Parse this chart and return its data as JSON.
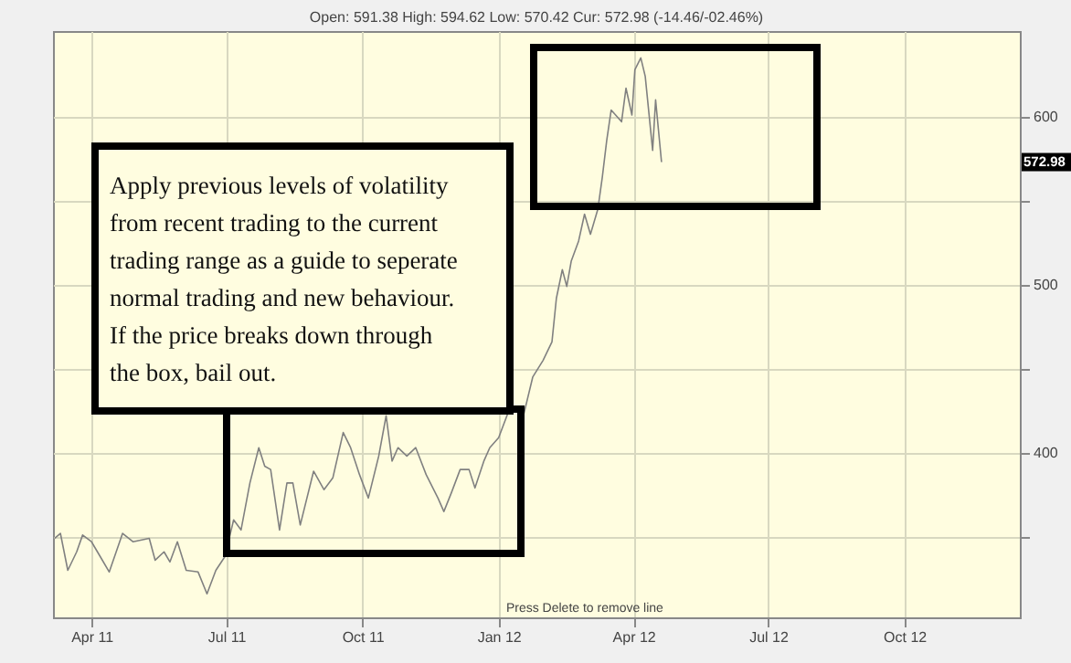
{
  "chart_data": {
    "type": "line",
    "title": "Open: 591.38 High: 594.62 Low: 570.42 Cur: 572.98 (-14.46/-02.46%)",
    "x": [
      "2011-03-07",
      "2011-03-11",
      "2011-03-16",
      "2011-03-22",
      "2011-03-26",
      "2011-04-01",
      "2011-04-07",
      "2011-04-13",
      "2011-04-22",
      "2011-04-29",
      "2011-05-10",
      "2011-05-14",
      "2011-05-20",
      "2011-05-24",
      "2011-05-29",
      "2011-06-04",
      "2011-06-12",
      "2011-06-18",
      "2011-06-24",
      "2011-06-30",
      "2011-07-06",
      "2011-07-11",
      "2011-07-17",
      "2011-07-23",
      "2011-07-27",
      "2011-07-31",
      "2011-08-06",
      "2011-08-11",
      "2011-08-15",
      "2011-08-20",
      "2011-08-29",
      "2011-09-05",
      "2011-09-11",
      "2011-09-18",
      "2011-09-23",
      "2011-09-29",
      "2011-10-05",
      "2011-10-12",
      "2011-10-17",
      "2011-10-21",
      "2011-10-25",
      "2011-10-31",
      "2011-11-06",
      "2011-11-13",
      "2011-11-21",
      "2011-11-25",
      "2011-11-30",
      "2011-12-06",
      "2011-12-12",
      "2011-12-16",
      "2011-12-22",
      "2011-12-26",
      "2012-01-01",
      "2012-01-07",
      "2012-01-13",
      "2012-01-18",
      "2012-01-24",
      "2012-01-31",
      "2012-02-06",
      "2012-02-09",
      "2012-02-13",
      "2012-02-16",
      "2012-02-19",
      "2012-02-24",
      "2012-02-28",
      "2012-03-03",
      "2012-03-08",
      "2012-03-11",
      "2012-03-14",
      "2012-03-17",
      "2012-03-24",
      "2012-03-27",
      "2012-03-31",
      "2012-04-02",
      "2012-04-06",
      "2012-04-09",
      "2012-04-14",
      "2012-04-16",
      "2012-04-20"
    ],
    "series": [
      {
        "color": "#808080",
        "values": [
          349,
          352,
          330,
          341,
          351,
          347,
          338,
          329,
          352,
          347,
          349,
          336,
          341,
          335,
          347,
          330,
          329,
          316,
          330,
          338,
          360,
          354,
          382,
          403,
          392,
          390,
          354,
          382,
          382,
          357,
          389,
          378,
          385,
          412,
          403,
          387,
          373,
          398,
          422,
          395,
          403,
          398,
          403,
          387,
          373,
          365,
          376,
          390,
          390,
          379,
          395,
          403,
          409,
          423,
          425,
          423,
          445,
          455,
          466,
          492,
          509,
          499,
          514,
          526,
          542,
          530,
          545,
          564,
          586,
          604,
          597,
          617,
          601,
          628,
          635,
          624,
          580,
          610,
          572.98
        ]
      }
    ],
    "xlim": [
      "2011-03-06",
      "2012-12-18"
    ],
    "xticks": [
      {
        "value": "2011-04-01",
        "label": "Apr 11"
      },
      {
        "value": "2011-07-01",
        "label": "Jul 11"
      },
      {
        "value": "2011-10-01",
        "label": "Oct 11"
      },
      {
        "value": "2012-01-01",
        "label": "Jan 12"
      },
      {
        "value": "2012-04-01",
        "label": "Apr 12"
      },
      {
        "value": "2012-07-01",
        "label": "Jul 12"
      },
      {
        "value": "2012-10-01",
        "label": "Oct 12"
      }
    ],
    "ylim": [
      302,
      651
    ],
    "yticks": [
      {
        "value": 350,
        "label": null
      },
      400,
      {
        "value": 450,
        "label": null
      },
      500,
      {
        "value": 550,
        "label": null
      },
      600
    ],
    "grid": true,
    "annotations": [
      "Apply previous levels of volatility\nfrom recent trading to the current\ntrading range as a guide to seperate\nnormal trading and new behaviour.\nIf the price breaks down through\nthe box, bail out.",
      "Press Delete to remove line",
      {
        "text": "572.98",
        "y": 572.98
      }
    ]
  }
}
